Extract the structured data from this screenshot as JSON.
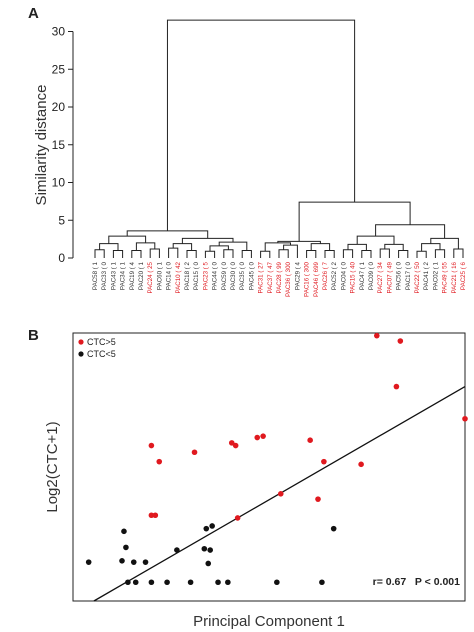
{
  "colors": {
    "ctc_high": "#e0191f",
    "ctc_low": "#111111",
    "leaf_default": "#333333",
    "line": "#222222"
  },
  "panel_a": {
    "letter": "A"
  },
  "panel_b": {
    "letter": "B"
  },
  "chart_data": [
    {
      "type": "dendrogram",
      "ylabel": "Similarity distance",
      "ylim": [
        0,
        33
      ],
      "yticks": [
        0,
        5,
        10,
        15,
        20,
        25,
        30
      ],
      "root_height": 31.5,
      "leaves": [
        {
          "label": "PAC58 ( 1",
          "color": "#333333"
        },
        {
          "label": "PAC33 ( 0",
          "color": "#333333"
        },
        {
          "label": "PAC43 ( 1",
          "color": "#333333"
        },
        {
          "label": "PAC34 ( 1",
          "color": "#333333"
        },
        {
          "label": "PAC19 ( 4",
          "color": "#333333"
        },
        {
          "label": "PAC20 ( 1",
          "color": "#333333"
        },
        {
          "label": "PAC24 ( 25",
          "color": "#e0191f"
        },
        {
          "label": "PAC60 ( 1",
          "color": "#333333"
        },
        {
          "label": "PAC14 ( 0",
          "color": "#333333"
        },
        {
          "label": "PAC10 ( 42",
          "color": "#e0191f"
        },
        {
          "label": "PAC18 ( 2",
          "color": "#333333"
        },
        {
          "label": "PAC15 ( 0",
          "color": "#333333"
        },
        {
          "label": "PAC23 ( 5",
          "color": "#e0191f"
        },
        {
          "label": "PAC44 ( 0",
          "color": "#333333"
        },
        {
          "label": "PAC59 ( 0",
          "color": "#333333"
        },
        {
          "label": "PAC30 ( 0",
          "color": "#333333"
        },
        {
          "label": "PAC35 ( 0",
          "color": "#333333"
        },
        {
          "label": "PAC45 ( 0",
          "color": "#333333"
        },
        {
          "label": "PAC31 ( 27",
          "color": "#e0191f"
        },
        {
          "label": "PAC37 ( 47",
          "color": "#e0191f"
        },
        {
          "label": "PAC28 ( 99",
          "color": "#e0191f"
        },
        {
          "label": "PAC36 ( 300",
          "color": "#e0191f"
        },
        {
          "label": "PAC29 ( 4",
          "color": "#333333"
        },
        {
          "label": "PAC16 ( 300",
          "color": "#e0191f"
        },
        {
          "label": "PAC46 ( 699",
          "color": "#e0191f"
        },
        {
          "label": "PAC26 ( 7",
          "color": "#e0191f"
        },
        {
          "label": "PAC52 ( 2",
          "color": "#333333"
        },
        {
          "label": "PAC04 ( 0",
          "color": "#333333"
        },
        {
          "label": "PAC15 ( 40",
          "color": "#e0191f"
        },
        {
          "label": "PAC47 ( 1",
          "color": "#333333"
        },
        {
          "label": "PAC09 ( 0",
          "color": "#333333"
        },
        {
          "label": "PAC27 ( 34",
          "color": "#e0191f"
        },
        {
          "label": "PAC07 ( 49",
          "color": "#e0191f"
        },
        {
          "label": "PAC56 ( 0",
          "color": "#333333"
        },
        {
          "label": "PAC17 ( 0",
          "color": "#333333"
        },
        {
          "label": "PAC22 ( 50",
          "color": "#e0191f"
        },
        {
          "label": "PAC41 ( 2",
          "color": "#333333"
        },
        {
          "label": "PAC02 ( 1",
          "color": "#333333"
        },
        {
          "label": "PAC49 ( 55",
          "color": "#e0191f"
        },
        {
          "label": "PAC21 ( 16",
          "color": "#e0191f"
        },
        {
          "label": "PAC25 ( 6",
          "color": "#e0191f"
        }
      ],
      "merges": [
        {
          "left": "L0",
          "right": "L1",
          "h": 1.1
        },
        {
          "left": "L2",
          "right": "L3",
          "h": 1.0
        },
        {
          "left": "L4",
          "right": "L5",
          "h": 1.0
        },
        {
          "left": "L6",
          "right": "L7",
          "h": 1.2
        },
        {
          "left": "L8",
          "right": "L9",
          "h": 1.3
        },
        {
          "left": "L10",
          "right": "L11",
          "h": 1.0
        },
        {
          "left": "L12",
          "right": "L13",
          "h": 0.9
        },
        {
          "left": "L14",
          "right": "L15",
          "h": 1.1
        },
        {
          "left": "L16",
          "right": "L17",
          "h": 1.0
        },
        {
          "left": "L18",
          "right": "L19",
          "h": 0.9
        },
        {
          "left": "L20",
          "right": "L21",
          "h": 1.1
        },
        {
          "left": "L23",
          "right": "L24",
          "h": 1.0
        },
        {
          "left": "L25",
          "right": "L26",
          "h": 1.0
        },
        {
          "left": "L27",
          "right": "L28",
          "h": 1.1
        },
        {
          "left": "L29",
          "right": "L30",
          "h": 1.0
        },
        {
          "left": "L31",
          "right": "L32",
          "h": 1.2
        },
        {
          "left": "L33",
          "right": "L34",
          "h": 1.0
        },
        {
          "left": "L35",
          "right": "L36",
          "h": 0.9
        },
        {
          "left": "L37",
          "right": "L38",
          "h": 1.1
        },
        {
          "left": "L39",
          "right": "L40",
          "h": 1.2
        },
        {
          "left": "M0",
          "right": "M1",
          "h": 1.9
        },
        {
          "left": "M2",
          "right": "M3",
          "h": 2.0
        },
        {
          "left": "M20",
          "right": "M21",
          "h": 2.9
        },
        {
          "left": "M4",
          "right": "M5",
          "h": 1.9
        },
        {
          "left": "M6",
          "right": "M7",
          "h": 1.6
        },
        {
          "left": "M24",
          "right": "M8",
          "h": 2.1
        },
        {
          "left": "M23",
          "right": "M25",
          "h": 2.6
        },
        {
          "left": "M22",
          "right": "M26",
          "h": 3.6
        },
        {
          "left": "M10",
          "right": "L22",
          "h": 1.7
        },
        {
          "left": "M9",
          "right": "M28",
          "h": 2.0
        },
        {
          "left": "M11",
          "right": "M12",
          "h": 1.9
        },
        {
          "left": "M29",
          "right": "M30",
          "h": 2.2
        },
        {
          "left": "M13",
          "right": "M14",
          "h": 1.8
        },
        {
          "left": "M15",
          "right": "M16",
          "h": 1.8
        },
        {
          "left": "M32",
          "right": "M33",
          "h": 2.9
        },
        {
          "left": "M17",
          "right": "M18",
          "h": 1.9
        },
        {
          "left": "M35",
          "right": "M19",
          "h": 2.6
        },
        {
          "left": "M34",
          "right": "M36",
          "h": 4.4
        },
        {
          "left": "M31",
          "right": "M37",
          "h": 7.4
        },
        {
          "left": "M27",
          "right": "M38",
          "h": 31.5
        }
      ]
    },
    {
      "type": "scatter",
      "xlabel": "Principal Component 1",
      "ylabel": "Log2(CTC+1)",
      "xlim": [
        0,
        100
      ],
      "ylim": [
        0,
        100
      ],
      "legend": [
        {
          "name": "CTC>5",
          "color": "#e0191f"
        },
        {
          "name": "CTC<5",
          "color": "#111111"
        }
      ],
      "legend_position": "top-left",
      "annotation": "r= 0.67   P < 0.001",
      "regression_line": {
        "x1": 0,
        "y1": -4.5,
        "x2": 100,
        "y2": 80
      },
      "series": [
        {
          "name": "CTC>5",
          "points": [
            [
              77.5,
              99
            ],
            [
              83.5,
              97
            ],
            [
              82.5,
              80
            ],
            [
              100,
              68
            ],
            [
              47,
              61
            ],
            [
              48.5,
              61.5
            ],
            [
              60.5,
              60
            ],
            [
              40.5,
              59
            ],
            [
              41.5,
              58
            ],
            [
              20,
              58
            ],
            [
              31,
              55.5
            ],
            [
              22,
              52
            ],
            [
              64,
              52
            ],
            [
              73.5,
              51
            ],
            [
              53,
              40
            ],
            [
              62.5,
              38
            ],
            [
              20,
              32
            ],
            [
              21,
              32
            ],
            [
              42,
              31
            ]
          ]
        },
        {
          "name": "CTC<5",
          "points": [
            [
              13,
              26
            ],
            [
              13.5,
              20
            ],
            [
              34,
              27
            ],
            [
              35.5,
              28
            ],
            [
              66.5,
              27
            ],
            [
              4,
              14.5
            ],
            [
              12.5,
              15
            ],
            [
              15.5,
              14.5
            ],
            [
              18.5,
              14.5
            ],
            [
              26.5,
              19
            ],
            [
              33.5,
              19.5
            ],
            [
              35,
              19
            ],
            [
              34.5,
              14
            ],
            [
              14,
              7
            ],
            [
              16,
              7
            ],
            [
              20,
              7
            ],
            [
              24,
              7
            ],
            [
              30,
              7
            ],
            [
              37,
              7
            ],
            [
              39.5,
              7
            ],
            [
              52,
              7
            ],
            [
              63.5,
              7
            ]
          ]
        }
      ]
    }
  ]
}
